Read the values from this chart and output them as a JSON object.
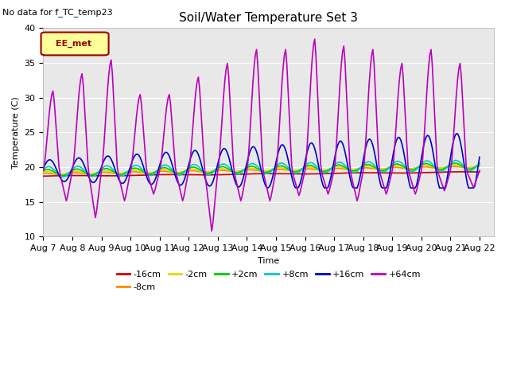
{
  "title": "Soil/Water Temperature Set 3",
  "xlabel": "Time",
  "ylabel": "Temperature (C)",
  "no_data_text": "No data for f_TC_temp23",
  "legend_label_text": "EE_met",
  "ylim": [
    10,
    40
  ],
  "xlim_start": 0,
  "xlim_end": 15.5,
  "plot_bg_color": "#e8e8e8",
  "series_colors": {
    "-16cm": "#cc0000",
    "-8cm": "#ff8800",
    "-2cm": "#dddd00",
    "+2cm": "#00cc00",
    "+8cm": "#00cccc",
    "+16cm": "#0000cc",
    "+64cm": "#bb00bb"
  },
  "xtick_labels": [
    "Aug 7",
    "Aug 8",
    "Aug 9",
    "Aug 10",
    "Aug 11",
    "Aug 12",
    "Aug 13",
    "Aug 14",
    "Aug 15",
    "Aug 16",
    "Aug 17",
    "Aug 18",
    "Aug 19",
    "Aug 20",
    "Aug 21",
    "Aug 22"
  ],
  "ytick_labels": [
    10,
    15,
    20,
    25,
    30,
    35,
    40
  ],
  "linewidth": 1.2,
  "title_fontsize": 11,
  "label_fontsize": 8,
  "tick_fontsize": 8,
  "legend_fontsize": 8,
  "ee_met_facecolor": "#ffff99",
  "ee_met_edgecolor": "#990000",
  "ee_met_textcolor": "#990000"
}
